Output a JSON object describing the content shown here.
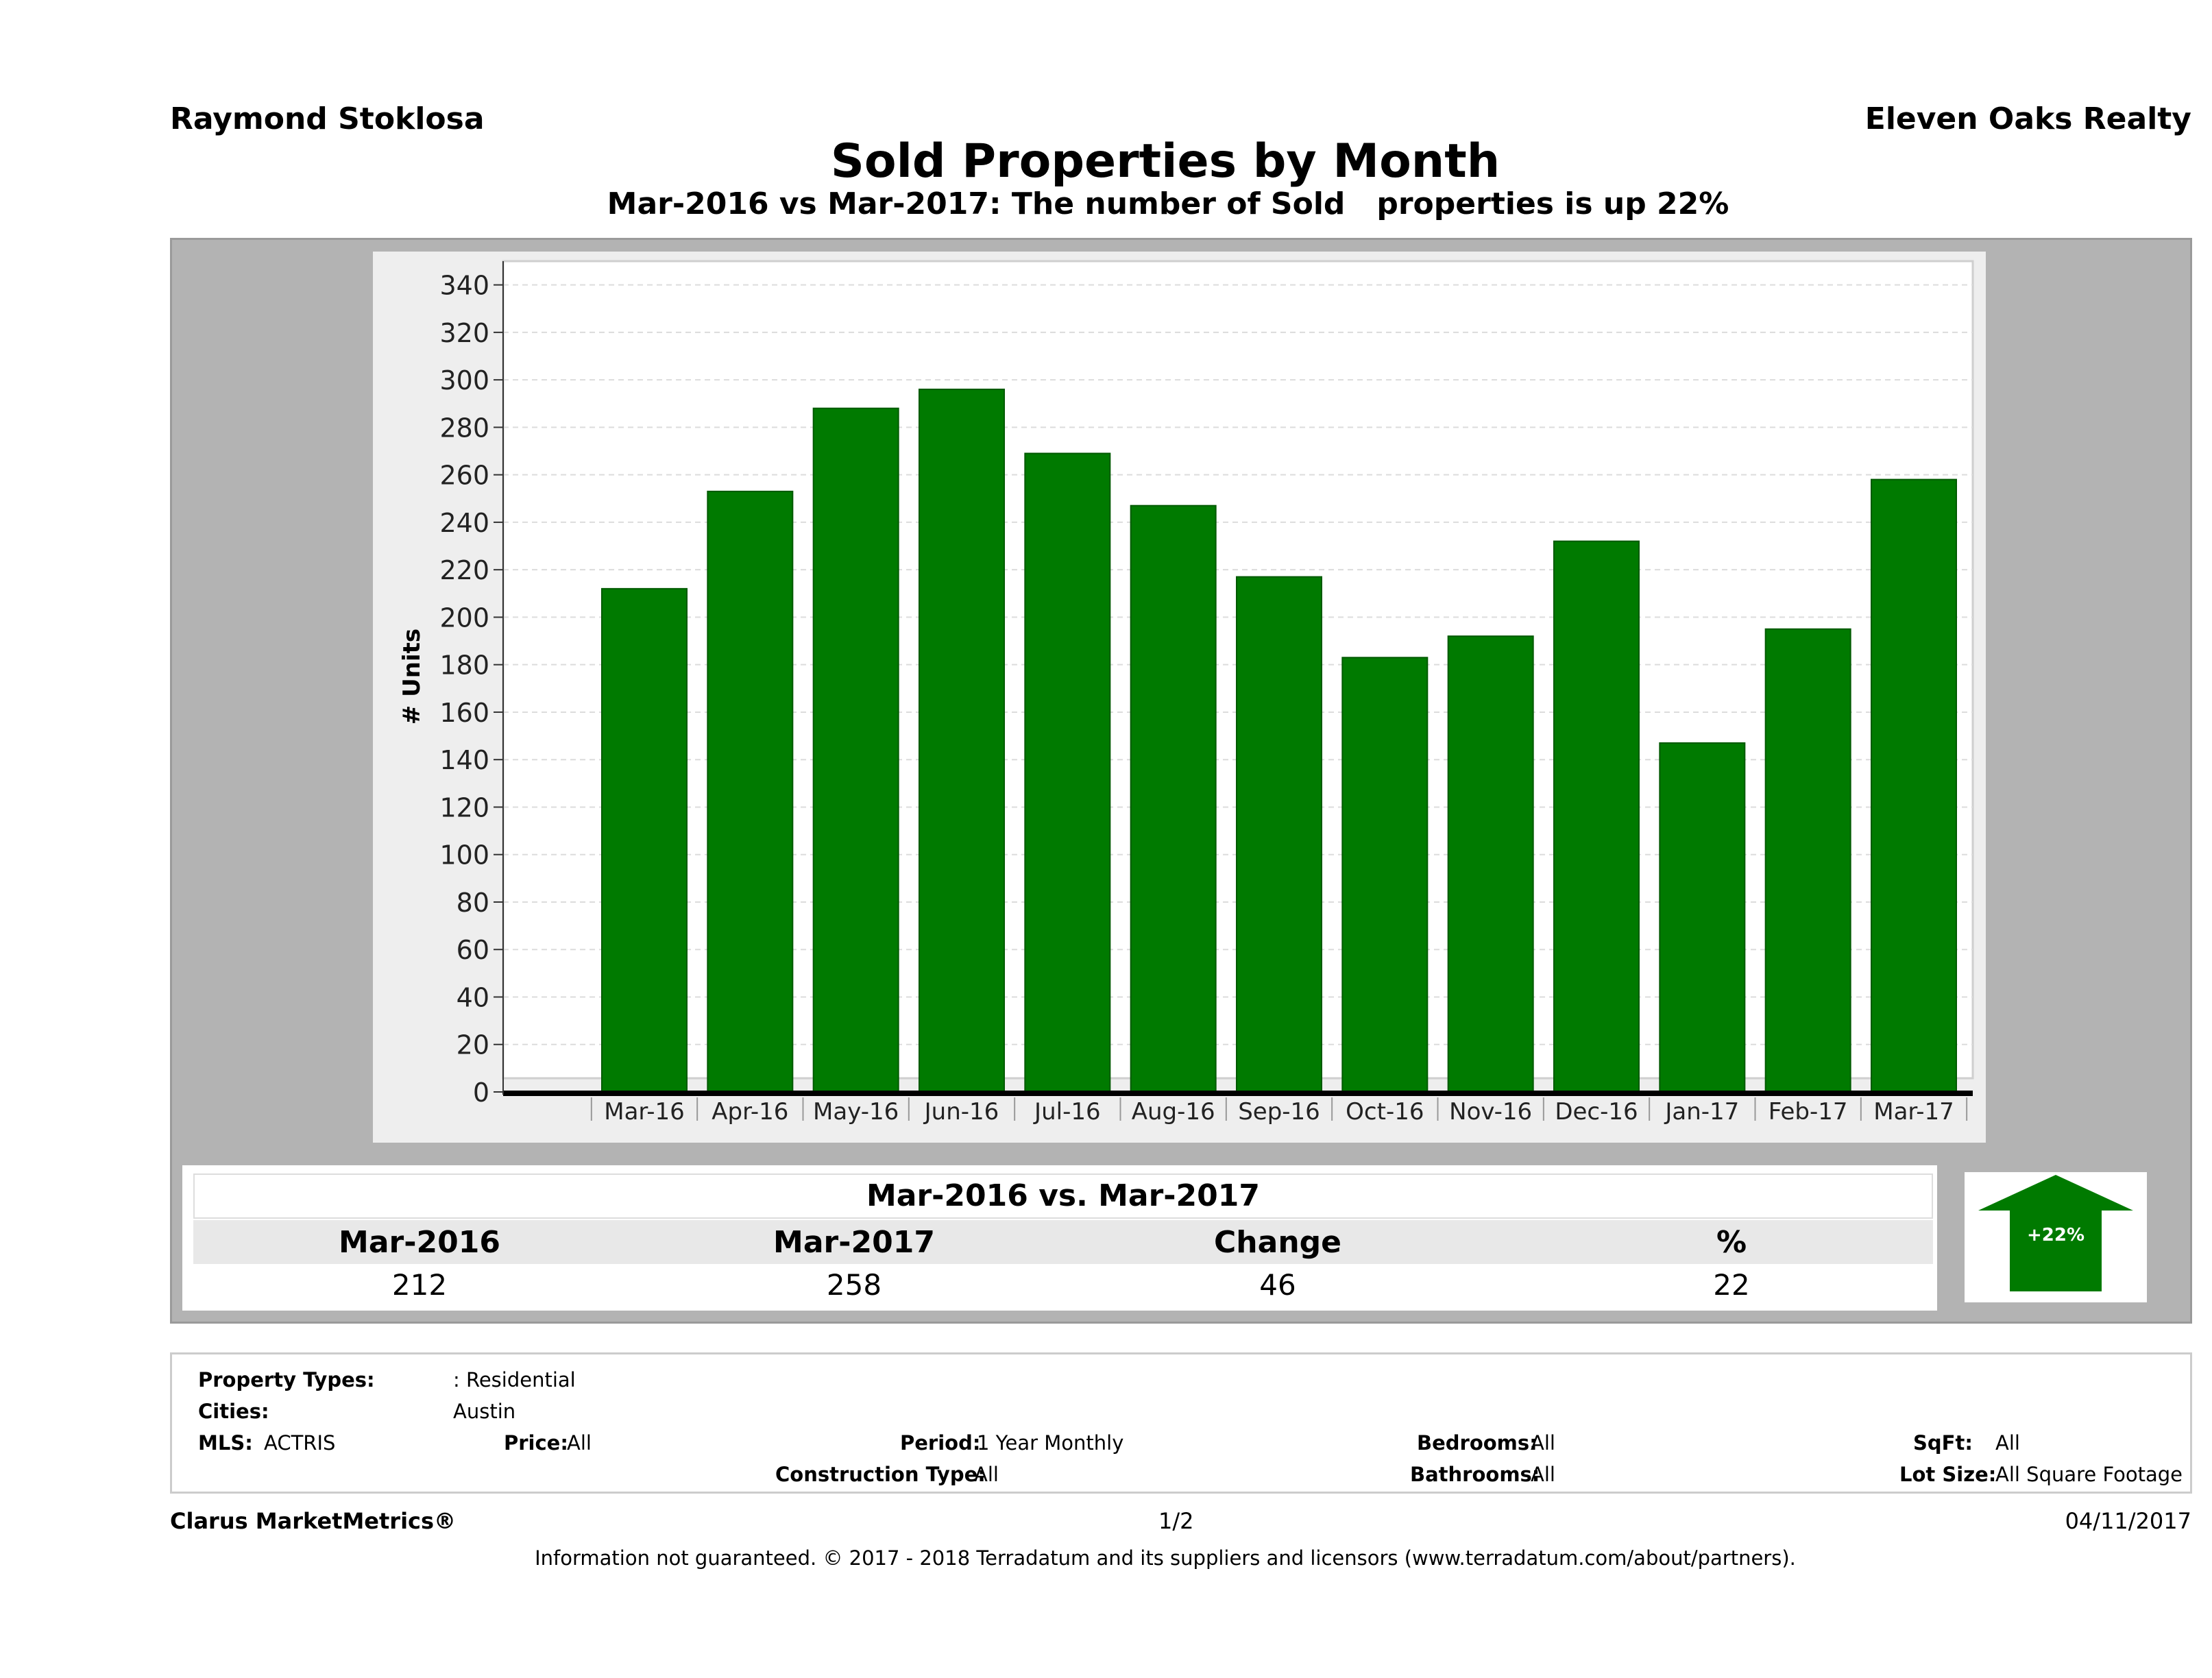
{
  "header": {
    "agent": "Raymond Stoklosa",
    "brokerage": "Eleven Oaks Realty",
    "title": "Sold Properties by Month",
    "subtitle": "Mar-2016 vs Mar-2017: The number of Sold   properties is up 22%"
  },
  "chart_data": {
    "type": "bar",
    "ylabel": "# Units",
    "xlabel": "",
    "ylim": [
      0,
      350
    ],
    "yticks": [
      "0",
      "20",
      "40",
      "60",
      "80",
      "100",
      "120",
      "140",
      "160",
      "180",
      "200",
      "220",
      "240",
      "260",
      "280",
      "300",
      "320",
      "340"
    ],
    "categories": [
      "Mar-16",
      "Apr-16",
      "May-16",
      "Jun-16",
      "Jul-16",
      "Aug-16",
      "Sep-16",
      "Oct-16",
      "Nov-16",
      "Dec-16",
      "Jan-17",
      "Feb-17",
      "Mar-17"
    ],
    "values": [
      212,
      253,
      288,
      296,
      269,
      247,
      217,
      183,
      192,
      232,
      147,
      195,
      258
    ],
    "bar_color": "#007a00",
    "grid": true
  },
  "summary": {
    "title": "Mar-2016 vs. Mar-2017",
    "headers": [
      "Mar-2016",
      "Mar-2017",
      "Change",
      "%"
    ],
    "values": [
      "212",
      "258",
      "46",
      "22"
    ],
    "badge": "+22%",
    "badge_color": "#007a00"
  },
  "filters": {
    "property_types_label": "Property Types:",
    "property_types_value": ": Residential",
    "cities_label": "Cities:",
    "cities_value": "Austin",
    "mls_label": "MLS:",
    "mls_value": "ACTRIS",
    "price_label": "Price:",
    "price_value": "All",
    "period_label": "Period:",
    "period_value": "1 Year Monthly",
    "construction_label": "Construction Type:",
    "construction_value": "All",
    "bedrooms_label": "Bedrooms:",
    "bedrooms_value": "All",
    "bathrooms_label": "Bathrooms:",
    "bathrooms_value": "All",
    "sqft_label": "SqFt:",
    "sqft_value": "All",
    "lotsize_label": "Lot Size:",
    "lotsize_value": "All Square Footage"
  },
  "footer": {
    "product": "Clarus MarketMetrics®",
    "page": "1/2",
    "date": "04/11/2017",
    "disclaimer": "Information not guaranteed. © 2017 - 2018 Terradatum and its suppliers and licensors (www.terradatum.com/about/partners)."
  }
}
